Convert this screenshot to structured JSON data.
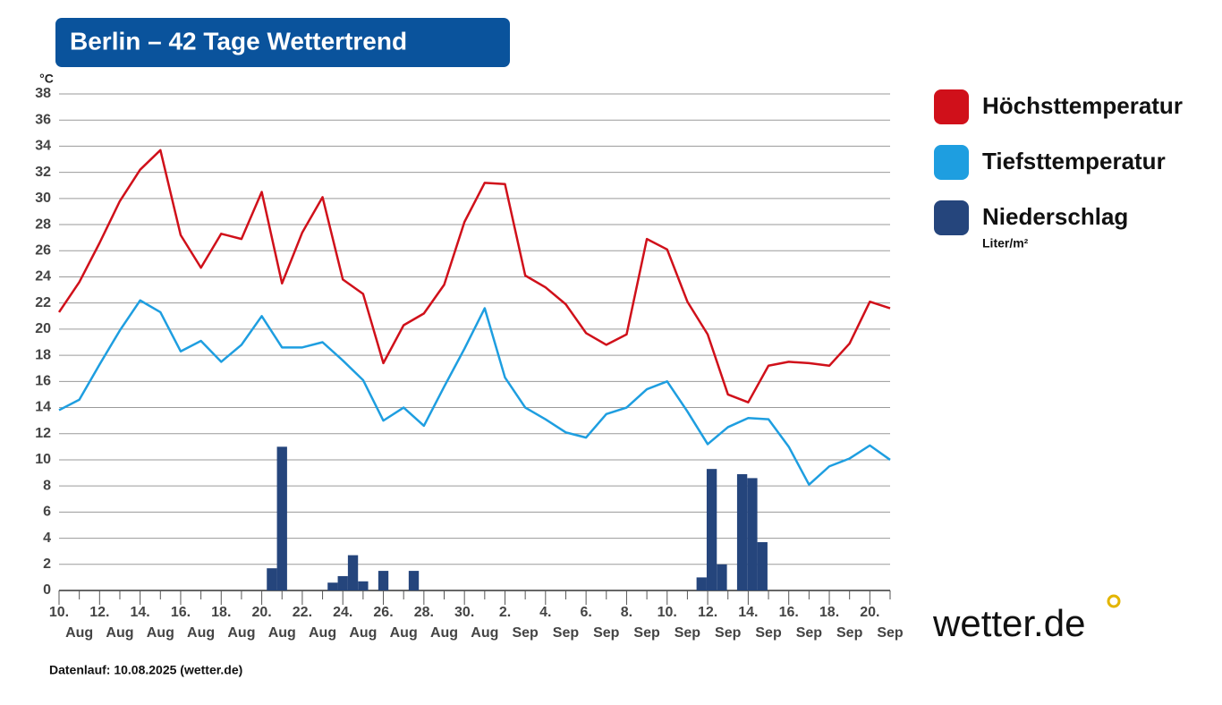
{
  "chart_data": {
    "type": "line",
    "title": "Berlin – 42 Tage Wettertrend",
    "y_unit": "°C",
    "ylim": [
      0,
      38
    ],
    "yticks": [
      0,
      2,
      4,
      6,
      8,
      10,
      12,
      14,
      16,
      18,
      20,
      22,
      24,
      26,
      28,
      30,
      32,
      34,
      36,
      38
    ],
    "grid": true,
    "x_labels": [
      {
        "day": "10.",
        "month": "Aug"
      },
      {
        "day": "12.",
        "month": "Aug"
      },
      {
        "day": "14.",
        "month": "Aug"
      },
      {
        "day": "16.",
        "month": "Aug"
      },
      {
        "day": "18.",
        "month": "Aug"
      },
      {
        "day": "20.",
        "month": "Aug"
      },
      {
        "day": "22.",
        "month": "Aug"
      },
      {
        "day": "24.",
        "month": "Aug"
      },
      {
        "day": "26.",
        "month": "Aug"
      },
      {
        "day": "28.",
        "month": "Aug"
      },
      {
        "day": "30.",
        "month": "Aug"
      },
      {
        "day": "2.",
        "month": "Sep"
      },
      {
        "day": "4.",
        "month": "Sep"
      },
      {
        "day": "6.",
        "month": "Sep"
      },
      {
        "day": "8.",
        "month": "Sep"
      },
      {
        "day": "10.",
        "month": "Sep"
      },
      {
        "day": "12.",
        "month": "Sep"
      },
      {
        "day": "14.",
        "month": "Sep"
      },
      {
        "day": "16.",
        "month": "Sep"
      },
      {
        "day": "18.",
        "month": "Sep"
      },
      {
        "day": "20.",
        "month": "Sep"
      }
    ],
    "series": [
      {
        "name": "Höchsttemperatur",
        "color": "#d0101a",
        "values": [
          21.3,
          23.6,
          26.6,
          29.8,
          32.2,
          33.7,
          27.2,
          24.7,
          27.3,
          26.9,
          30.5,
          23.5,
          27.4,
          30.1,
          23.8,
          22.7,
          17.4,
          20.3,
          21.2,
          23.4,
          28.2,
          31.2,
          31.1,
          24.1,
          23.2,
          21.9,
          19.7,
          18.8,
          19.6,
          26.9,
          26.1,
          22.1,
          19.6,
          15.0,
          14.4,
          17.2,
          17.5,
          17.4,
          17.2,
          18.9,
          22.1,
          21.6
        ]
      },
      {
        "name": "Tiefsttemperatur",
        "color": "#1e9ee0",
        "values": [
          13.8,
          14.6,
          17.3,
          19.9,
          22.2,
          21.3,
          18.3,
          19.1,
          17.5,
          18.8,
          21.0,
          18.6,
          18.6,
          19.0,
          17.6,
          16.1,
          13.0,
          14.0,
          12.6,
          15.6,
          18.5,
          21.6,
          16.3,
          14.0,
          13.1,
          12.1,
          11.7,
          13.5,
          14.0,
          15.4,
          16.0,
          13.7,
          11.2,
          12.5,
          13.2,
          13.1,
          11.0,
          8.1,
          9.5,
          10.1,
          11.1,
          10.0
        ]
      },
      {
        "name": "Niederschlag",
        "unit": "Liter/m²",
        "color": "#25457c",
        "type": "bar",
        "x": [
          10.5,
          11.0,
          13.5,
          14.0,
          14.5,
          15.0,
          16.0,
          17.5,
          31.7,
          32.2,
          32.7,
          33.7,
          34.2,
          34.7
        ],
        "values": [
          1.7,
          11.0,
          0.6,
          1.1,
          2.7,
          0.7,
          1.5,
          1.5,
          1.0,
          9.3,
          2.0,
          8.9,
          8.6,
          3.7
        ]
      }
    ],
    "footer": "Datenlauf: 10.08.2025 (wetter.de)",
    "logo": "wetter.de"
  }
}
